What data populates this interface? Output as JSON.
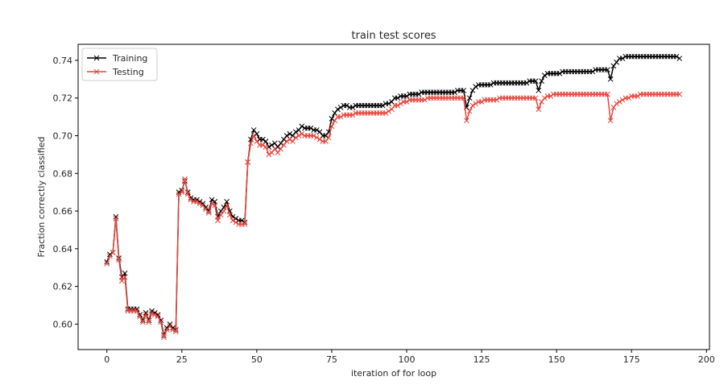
{
  "chart_data": {
    "type": "line",
    "title": "train test scores",
    "xlabel": "iteration of for loop",
    "ylabel": "Fraction correctly classified",
    "xlim": [
      -9.6,
      201
    ],
    "ylim": [
      0.5865,
      0.7485
    ],
    "xticks": [
      0,
      25,
      50,
      75,
      100,
      125,
      150,
      175,
      200
    ],
    "yticks": [
      0.6,
      0.62,
      0.64,
      0.66,
      0.68,
      0.7,
      0.72,
      0.74
    ],
    "grid": false,
    "legend": "top-left",
    "marker": "x",
    "series": [
      {
        "name": "Training",
        "color": "#000000",
        "x": [
          0,
          1,
          2,
          3,
          4,
          5,
          6,
          7,
          8,
          9,
          10,
          11,
          12,
          13,
          14,
          15,
          16,
          17,
          18,
          19,
          20,
          21,
          22,
          23,
          24,
          25,
          26,
          27,
          28,
          29,
          30,
          31,
          32,
          33,
          34,
          35,
          36,
          37,
          38,
          39,
          40,
          41,
          42,
          43,
          44,
          45,
          46,
          47,
          48,
          49,
          50,
          51,
          52,
          53,
          54,
          55,
          56,
          57,
          58,
          59,
          60,
          61,
          62,
          63,
          64,
          65,
          66,
          67,
          68,
          69,
          70,
          71,
          72,
          73,
          74,
          75,
          76,
          77,
          78,
          79,
          80,
          81,
          82,
          83,
          84,
          85,
          86,
          87,
          88,
          89,
          90,
          91,
          92,
          93,
          94,
          95,
          96,
          97,
          98,
          99,
          100,
          101,
          102,
          103,
          104,
          105,
          106,
          107,
          108,
          109,
          110,
          111,
          112,
          113,
          114,
          115,
          116,
          117,
          118,
          119,
          120,
          121,
          122,
          123,
          124,
          125,
          126,
          127,
          128,
          129,
          130,
          131,
          132,
          133,
          134,
          135,
          136,
          137,
          138,
          139,
          140,
          141,
          142,
          143,
          144,
          145,
          146,
          147,
          148,
          149,
          150,
          151,
          152,
          153,
          154,
          155,
          156,
          157,
          158,
          159,
          160,
          161,
          162,
          163,
          164,
          165,
          166,
          167,
          168,
          169,
          170,
          171,
          172,
          173,
          174,
          175,
          176,
          177,
          178,
          179,
          180,
          181,
          182,
          183,
          184,
          185,
          186,
          187,
          188,
          189,
          190,
          191
        ],
        "values": [
          0.633,
          0.637,
          0.638,
          0.657,
          0.635,
          0.625,
          0.627,
          0.608,
          0.608,
          0.608,
          0.608,
          0.605,
          0.602,
          0.606,
          0.602,
          0.607,
          0.606,
          0.605,
          0.602,
          0.594,
          0.598,
          0.6,
          0.598,
          0.597,
          0.67,
          0.671,
          0.676,
          0.67,
          0.667,
          0.666,
          0.666,
          0.665,
          0.664,
          0.662,
          0.66,
          0.666,
          0.665,
          0.657,
          0.66,
          0.662,
          0.665,
          0.66,
          0.657,
          0.656,
          0.655,
          0.655,
          0.654,
          0.686,
          0.698,
          0.703,
          0.701,
          0.698,
          0.698,
          0.697,
          0.694,
          0.695,
          0.696,
          0.694,
          0.696,
          0.698,
          0.7,
          0.701,
          0.7,
          0.702,
          0.703,
          0.705,
          0.704,
          0.704,
          0.704,
          0.703,
          0.703,
          0.702,
          0.7,
          0.7,
          0.702,
          0.709,
          0.712,
          0.714,
          0.715,
          0.716,
          0.716,
          0.715,
          0.715,
          0.716,
          0.716,
          0.716,
          0.716,
          0.716,
          0.716,
          0.716,
          0.716,
          0.716,
          0.716,
          0.717,
          0.717,
          0.718,
          0.72,
          0.72,
          0.721,
          0.721,
          0.721,
          0.722,
          0.722,
          0.722,
          0.722,
          0.723,
          0.723,
          0.723,
          0.723,
          0.723,
          0.723,
          0.723,
          0.723,
          0.723,
          0.723,
          0.723,
          0.723,
          0.724,
          0.724,
          0.724,
          0.715,
          0.72,
          0.724,
          0.726,
          0.727,
          0.727,
          0.727,
          0.727,
          0.727,
          0.728,
          0.728,
          0.728,
          0.728,
          0.728,
          0.728,
          0.728,
          0.728,
          0.728,
          0.728,
          0.728,
          0.728,
          0.729,
          0.729,
          0.729,
          0.724,
          0.729,
          0.732,
          0.733,
          0.733,
          0.733,
          0.733,
          0.733,
          0.734,
          0.734,
          0.734,
          0.734,
          0.734,
          0.734,
          0.734,
          0.734,
          0.734,
          0.734,
          0.734,
          0.735,
          0.735,
          0.735,
          0.735,
          0.735,
          0.73,
          0.737,
          0.739,
          0.741,
          0.741,
          0.742,
          0.742,
          0.742,
          0.742,
          0.742,
          0.742,
          0.742,
          0.742,
          0.742,
          0.742,
          0.742,
          0.742,
          0.742,
          0.742,
          0.742,
          0.742,
          0.742,
          0.742,
          0.741
        ]
      },
      {
        "name": "Testing",
        "color": "#e8453c",
        "x": [
          0,
          1,
          2,
          3,
          4,
          5,
          6,
          7,
          8,
          9,
          10,
          11,
          12,
          13,
          14,
          15,
          16,
          17,
          18,
          19,
          20,
          21,
          22,
          23,
          24,
          25,
          26,
          27,
          28,
          29,
          30,
          31,
          32,
          33,
          34,
          35,
          36,
          37,
          38,
          39,
          40,
          41,
          42,
          43,
          44,
          45,
          46,
          47,
          48,
          49,
          50,
          51,
          52,
          53,
          54,
          55,
          56,
          57,
          58,
          59,
          60,
          61,
          62,
          63,
          64,
          65,
          66,
          67,
          68,
          69,
          70,
          71,
          72,
          73,
          74,
          75,
          76,
          77,
          78,
          79,
          80,
          81,
          82,
          83,
          84,
          85,
          86,
          87,
          88,
          89,
          90,
          91,
          92,
          93,
          94,
          95,
          96,
          97,
          98,
          99,
          100,
          101,
          102,
          103,
          104,
          105,
          106,
          107,
          108,
          109,
          110,
          111,
          112,
          113,
          114,
          115,
          116,
          117,
          118,
          119,
          120,
          121,
          122,
          123,
          124,
          125,
          126,
          127,
          128,
          129,
          130,
          131,
          132,
          133,
          134,
          135,
          136,
          137,
          138,
          139,
          140,
          141,
          142,
          143,
          144,
          145,
          146,
          147,
          148,
          149,
          150,
          151,
          152,
          153,
          154,
          155,
          156,
          157,
          158,
          159,
          160,
          161,
          162,
          163,
          164,
          165,
          166,
          167,
          168,
          169,
          170,
          171,
          172,
          173,
          174,
          175,
          176,
          177,
          178,
          179,
          180,
          181,
          182,
          183,
          184,
          185,
          186,
          187,
          188,
          189,
          190,
          191
        ],
        "values": [
          0.632,
          0.636,
          0.638,
          0.656,
          0.634,
          0.623,
          0.625,
          0.607,
          0.607,
          0.607,
          0.607,
          0.604,
          0.601,
          0.605,
          0.601,
          0.606,
          0.605,
          0.604,
          0.601,
          0.593,
          0.597,
          0.599,
          0.597,
          0.596,
          0.669,
          0.67,
          0.677,
          0.669,
          0.666,
          0.665,
          0.665,
          0.664,
          0.663,
          0.661,
          0.659,
          0.664,
          0.663,
          0.655,
          0.658,
          0.66,
          0.663,
          0.658,
          0.655,
          0.654,
          0.653,
          0.653,
          0.653,
          0.686,
          0.696,
          0.7,
          0.697,
          0.695,
          0.695,
          0.694,
          0.69,
          0.691,
          0.693,
          0.691,
          0.693,
          0.695,
          0.697,
          0.698,
          0.697,
          0.699,
          0.7,
          0.701,
          0.7,
          0.7,
          0.7,
          0.7,
          0.699,
          0.698,
          0.697,
          0.697,
          0.699,
          0.705,
          0.708,
          0.71,
          0.71,
          0.711,
          0.711,
          0.711,
          0.711,
          0.712,
          0.712,
          0.712,
          0.712,
          0.712,
          0.712,
          0.712,
          0.712,
          0.712,
          0.712,
          0.712,
          0.713,
          0.714,
          0.716,
          0.716,
          0.717,
          0.718,
          0.718,
          0.719,
          0.719,
          0.719,
          0.719,
          0.719,
          0.719,
          0.72,
          0.72,
          0.72,
          0.72,
          0.72,
          0.72,
          0.72,
          0.72,
          0.72,
          0.72,
          0.72,
          0.72,
          0.72,
          0.708,
          0.713,
          0.716,
          0.717,
          0.718,
          0.718,
          0.719,
          0.719,
          0.719,
          0.719,
          0.719,
          0.72,
          0.72,
          0.72,
          0.72,
          0.72,
          0.72,
          0.72,
          0.72,
          0.72,
          0.72,
          0.72,
          0.72,
          0.72,
          0.714,
          0.718,
          0.72,
          0.721,
          0.721,
          0.722,
          0.722,
          0.722,
          0.722,
          0.722,
          0.722,
          0.722,
          0.722,
          0.722,
          0.722,
          0.722,
          0.722,
          0.722,
          0.722,
          0.722,
          0.722,
          0.722,
          0.722,
          0.722,
          0.708,
          0.715,
          0.717,
          0.718,
          0.719,
          0.72,
          0.72,
          0.721,
          0.721,
          0.721,
          0.722,
          0.722,
          0.722,
          0.722,
          0.722,
          0.722,
          0.722,
          0.722,
          0.722,
          0.722,
          0.722,
          0.722,
          0.722,
          0.722
        ]
      }
    ]
  }
}
